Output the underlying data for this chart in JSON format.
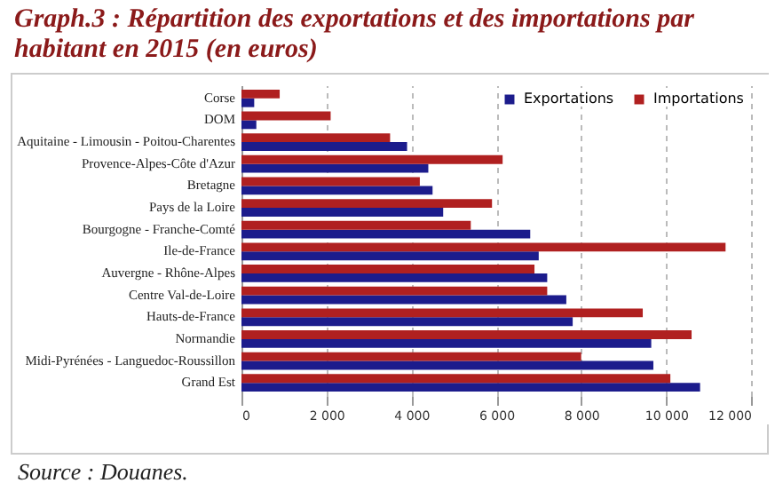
{
  "chart_data": {
    "type": "bar",
    "orientation": "horizontal",
    "title": "Graph.3 : Répartition des exportations et des importations par habitant en 2015 (en euros)",
    "categories": [
      "Corse",
      "DOM",
      "Aquitaine - Limousin - Poitou-Charentes",
      "Provence-Alpes-Côte d'Azur",
      "Bretagne",
      "Pays de la Loire",
      "Bourgogne - Franche-Comté",
      "Ile-de-France",
      "Auvergne - Rhône-Alpes",
      "Centre Val-de-Loire",
      "Hauts-de-France",
      "Normandie",
      "Midi-Pyrénées - Languedoc-Roussillon",
      "Grand Est"
    ],
    "series": [
      {
        "name": "Exportations",
        "color": "#1c1c8c",
        "values": [
          300,
          350,
          3900,
          4400,
          4500,
          4750,
          6800,
          7000,
          7200,
          7650,
          7800,
          9650,
          9700,
          10800
        ]
      },
      {
        "name": "Importations",
        "color": "#b02020",
        "values": [
          900,
          2100,
          3500,
          6150,
          4200,
          5900,
          5400,
          11400,
          6900,
          7200,
          9450,
          10600,
          8000,
          10100
        ]
      }
    ],
    "xlim": [
      0,
      12000
    ],
    "xticks": [
      {
        "value": 0,
        "label": "0"
      },
      {
        "value": 2000,
        "label": "2 000"
      },
      {
        "value": 4000,
        "label": "4 000"
      },
      {
        "value": 6000,
        "label": "6 000"
      },
      {
        "value": 8000,
        "label": "8 000"
      },
      {
        "value": 10000,
        "label": "10 000"
      },
      {
        "value": 12000,
        "label": "12 000"
      }
    ],
    "grid": "x",
    "legend": "top right",
    "annotations": [
      "Source : Douanes."
    ]
  }
}
